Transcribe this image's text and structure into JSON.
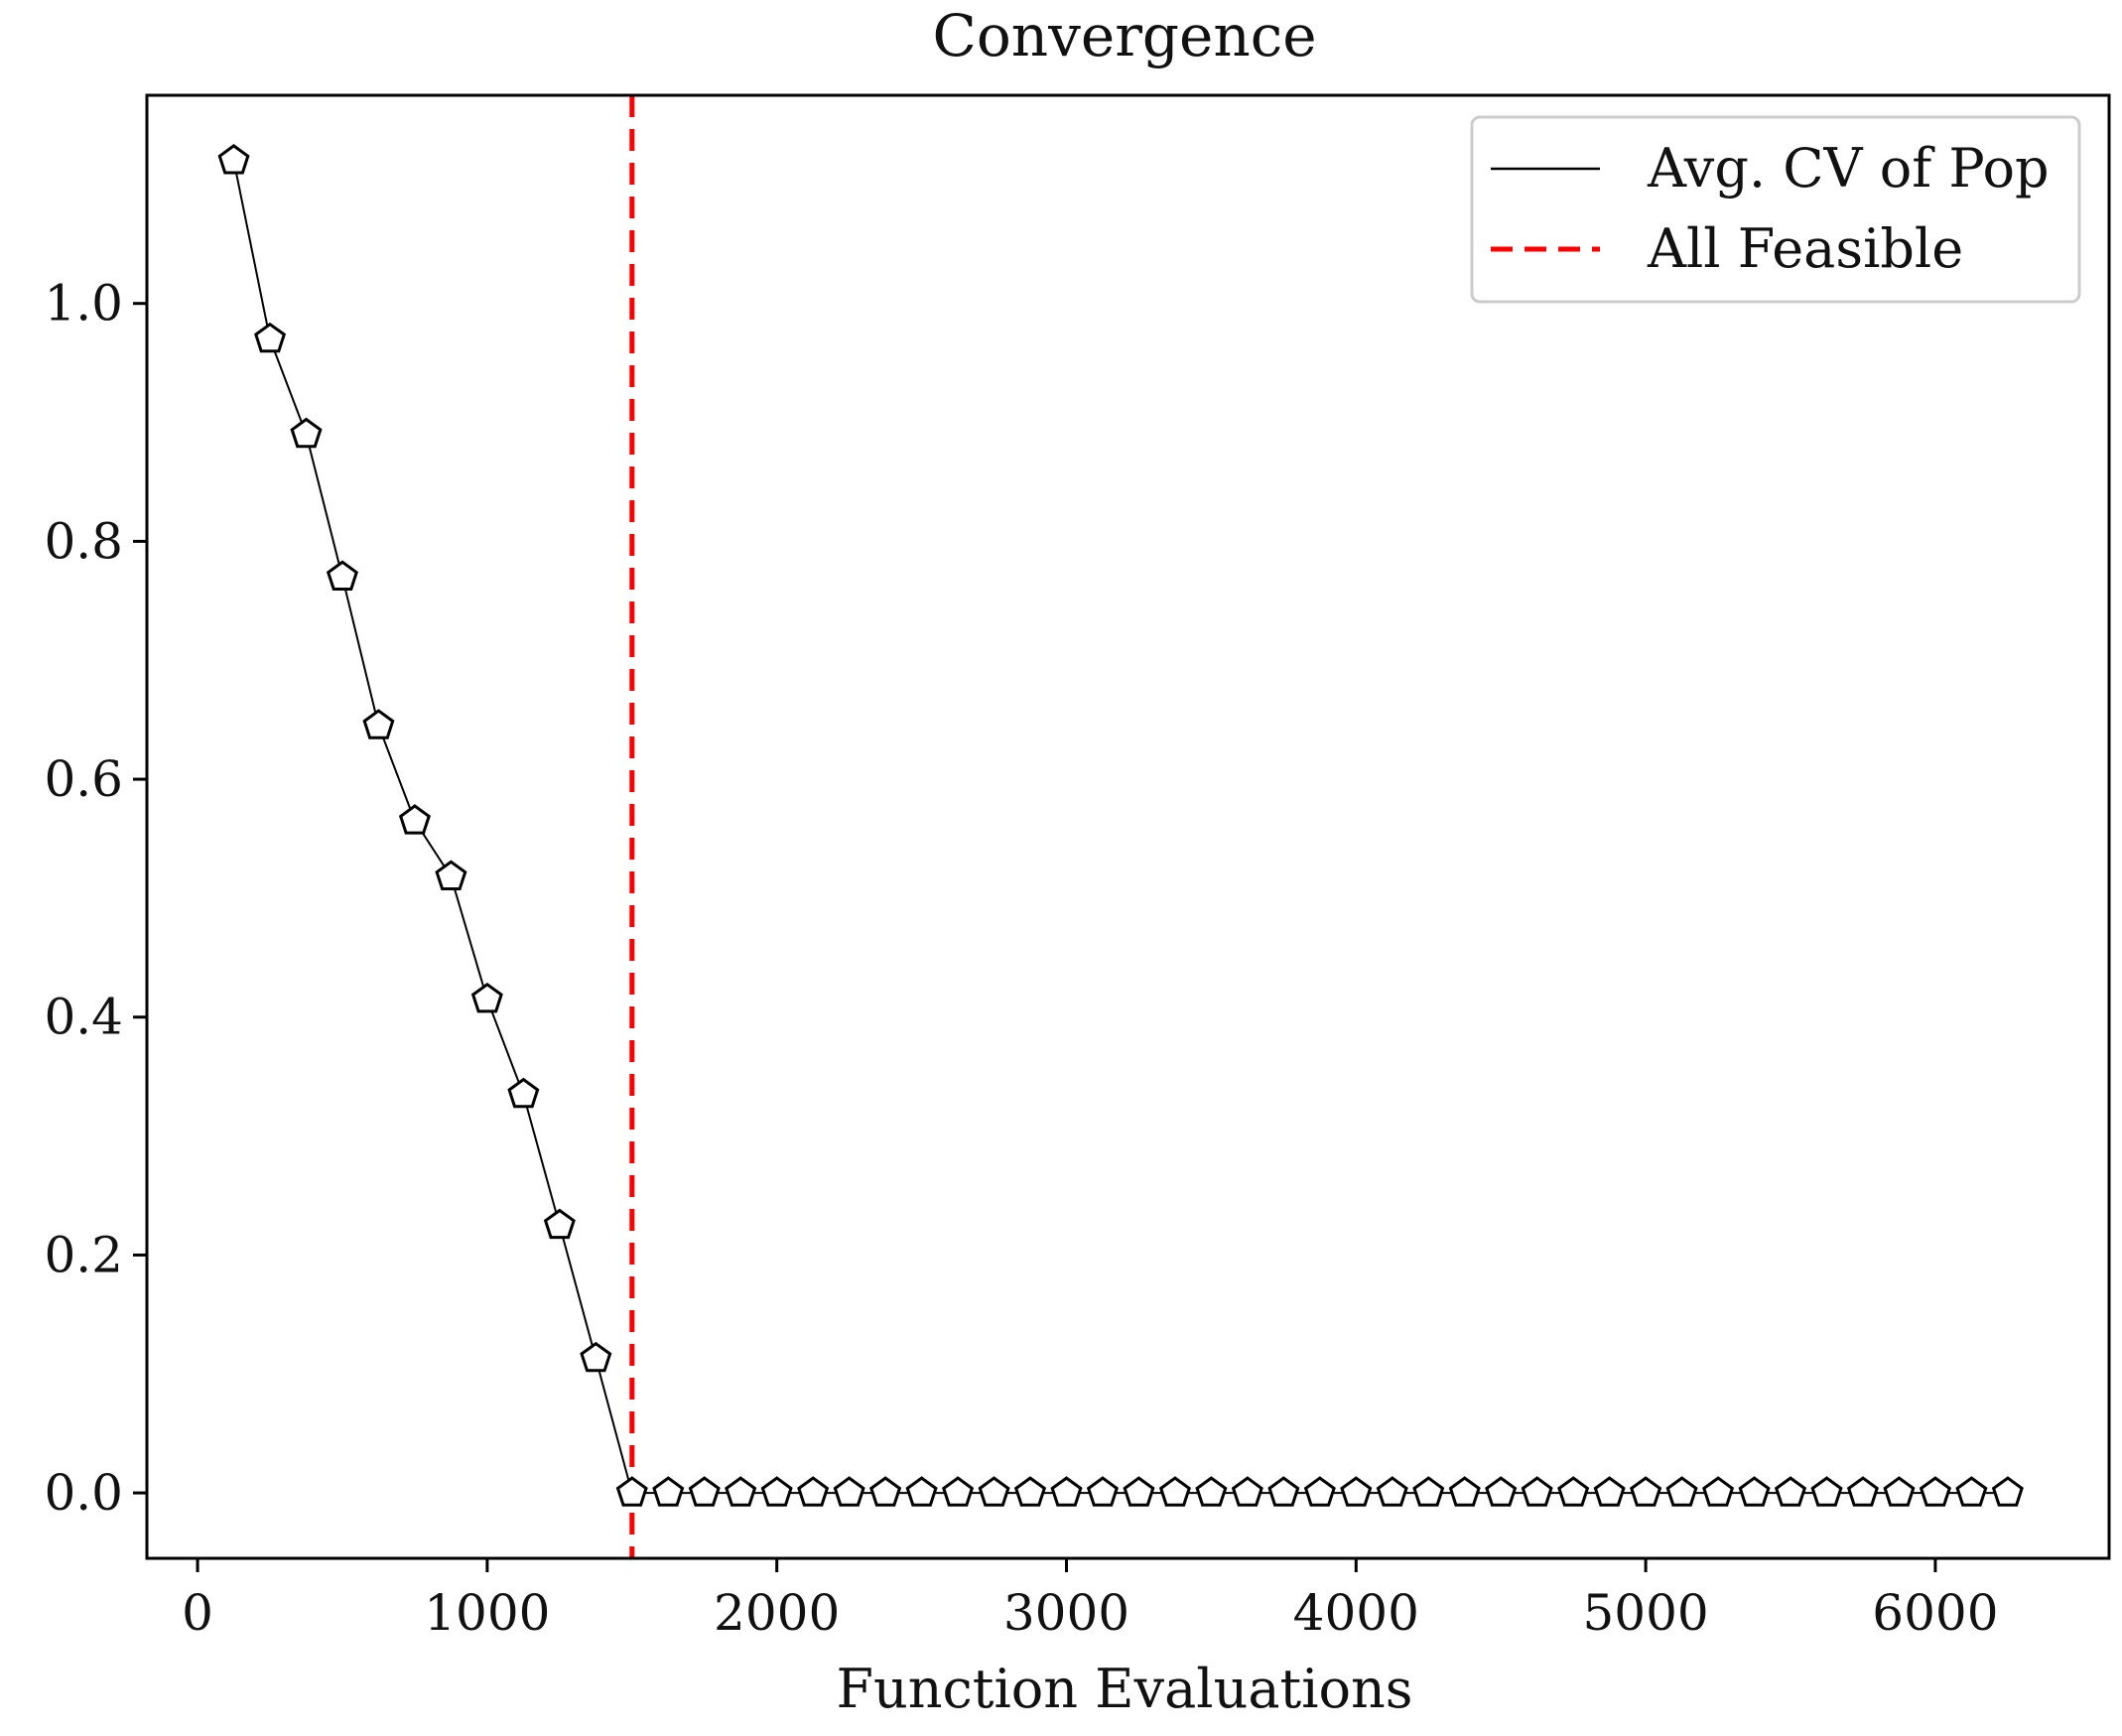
{
  "chart_data": {
    "type": "line",
    "title": "Convergence",
    "xlabel": "Function Evaluations",
    "ylabel": "",
    "xlim": [
      -175,
      6600
    ],
    "ylim": [
      -0.055,
      1.175
    ],
    "xticks": [
      0,
      1000,
      2000,
      3000,
      4000,
      5000,
      6000
    ],
    "yticks": [
      0.0,
      0.2,
      0.4,
      0.6,
      0.8,
      1.0
    ],
    "xtick_labels": [
      "0",
      "1000",
      "2000",
      "3000",
      "4000",
      "5000",
      "6000"
    ],
    "ytick_labels": [
      "0.0",
      "0.2",
      "0.4",
      "0.6",
      "0.8",
      "1.0"
    ],
    "grid": false,
    "legend_position": "top-right",
    "series": [
      {
        "name": "Avg. CV of Pop",
        "color": "#000000",
        "marker": "pentagon",
        "x": [
          125,
          250,
          375,
          500,
          625,
          750,
          875,
          1000,
          1125,
          1250,
          1375,
          1500,
          1625,
          1750,
          1875,
          2000,
          2125,
          2250,
          2375,
          2500,
          2625,
          2750,
          2875,
          3000,
          3125,
          3250,
          3375,
          3500,
          3625,
          3750,
          3875,
          4000,
          4125,
          4250,
          4375,
          4500,
          4625,
          4750,
          4875,
          5000,
          5125,
          5250,
          5375,
          5500,
          5625,
          5750,
          5875,
          6000,
          6125,
          6250
        ],
        "y": [
          1.12,
          0.97,
          0.89,
          0.77,
          0.645,
          0.565,
          0.518,
          0.415,
          0.335,
          0.225,
          0.113,
          0.0,
          0.0,
          0.0,
          0.0,
          0.0,
          0.0,
          0.0,
          0.0,
          0.0,
          0.0,
          0.0,
          0.0,
          0.0,
          0.0,
          0.0,
          0.0,
          0.0,
          0.0,
          0.0,
          0.0,
          0.0,
          0.0,
          0.0,
          0.0,
          0.0,
          0.0,
          0.0,
          0.0,
          0.0,
          0.0,
          0.0,
          0.0,
          0.0,
          0.0,
          0.0,
          0.0,
          0.0,
          0.0,
          0.0
        ]
      },
      {
        "name": "All Feasible",
        "color": "#ff0000",
        "style": "dashed",
        "vertical_line_x": 1500
      }
    ]
  }
}
